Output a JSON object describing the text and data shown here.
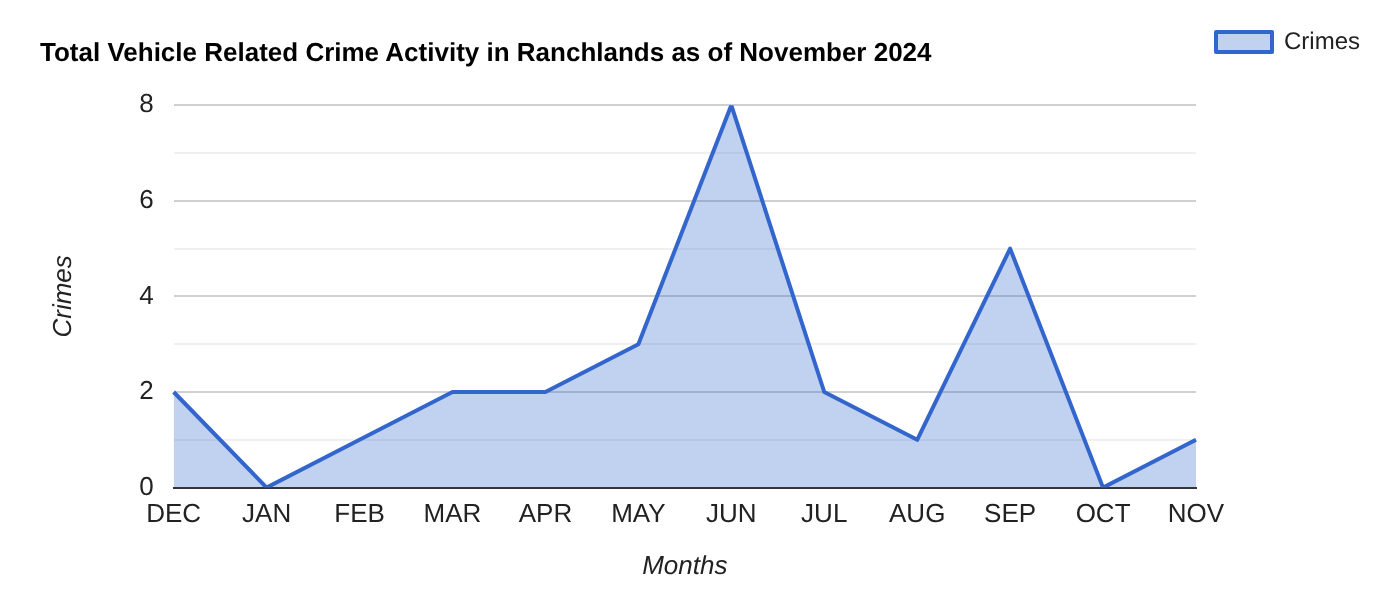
{
  "chart_data": {
    "type": "area",
    "title": "Total Vehicle Related Crime Activity in Ranchlands as of November 2024",
    "xlabel": "Months",
    "ylabel": "Crimes",
    "categories": [
      "DEC",
      "JAN",
      "FEB",
      "MAR",
      "APR",
      "MAY",
      "JUN",
      "JUL",
      "AUG",
      "SEP",
      "OCT",
      "NOV"
    ],
    "series": [
      {
        "name": "Crimes",
        "color": "#3366cc",
        "values": [
          2,
          0,
          1,
          2,
          2,
          3,
          8,
          2,
          1,
          5,
          0,
          1
        ]
      }
    ],
    "ylim": [
      0,
      8
    ],
    "yticks": [
      0,
      {
        "value": 1,
        "label": null
      },
      2,
      {
        "value": 3,
        "label": null
      },
      4,
      {
        "value": 5,
        "label": null
      },
      6,
      {
        "value": 7,
        "label": null
      },
      8
    ],
    "grid": "y",
    "legend": "top right"
  }
}
